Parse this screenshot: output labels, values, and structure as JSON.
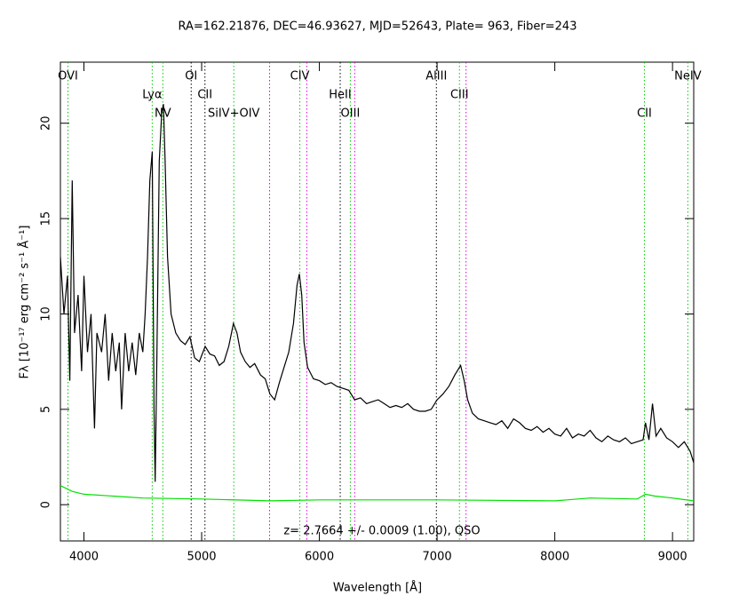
{
  "chart_data": {
    "type": "line",
    "title": "RA=162.21876, DEC=46.93627, MJD=52643, Plate= 963, Fiber=243",
    "annotation": "z= 2.7664 +/- 0.0009 (1.00), QSO",
    "x_label": "Wavelength [Å]",
    "y_label": "Fλ [10⁻¹⁷ erg cm⁻² s⁻¹ Å⁻¹]",
    "xlim": [
      3800,
      9180
    ],
    "ylim": [
      -1.9,
      23.2
    ],
    "xticks": [
      4000,
      5000,
      6000,
      7000,
      8000,
      9000
    ],
    "yticks": [
      0,
      5,
      10,
      15,
      20
    ],
    "series": [
      {
        "color": "#000000",
        "x": [
          3800,
          3830,
          3860,
          3880,
          3900,
          3920,
          3950,
          3980,
          4000,
          4030,
          4060,
          4090,
          4110,
          4150,
          4180,
          4210,
          4240,
          4270,
          4300,
          4320,
          4350,
          4380,
          4410,
          4440,
          4470,
          4500,
          4520,
          4540,
          4560,
          4580,
          4595,
          4605,
          4620,
          4640,
          4660,
          4675,
          4690,
          4710,
          4740,
          4780,
          4820,
          4860,
          4900,
          4940,
          4980,
          5030,
          5070,
          5110,
          5150,
          5190,
          5230,
          5270,
          5300,
          5330,
          5370,
          5410,
          5450,
          5500,
          5540,
          5580,
          5620,
          5660,
          5700,
          5740,
          5780,
          5810,
          5830,
          5850,
          5870,
          5900,
          5950,
          6000,
          6050,
          6100,
          6150,
          6200,
          6250,
          6300,
          6350,
          6400,
          6450,
          6500,
          6550,
          6600,
          6650,
          6700,
          6750,
          6800,
          6850,
          6900,
          6950,
          7000,
          7050,
          7100,
          7150,
          7200,
          7230,
          7260,
          7300,
          7350,
          7400,
          7450,
          7500,
          7550,
          7600,
          7650,
          7700,
          7750,
          7800,
          7850,
          7900,
          7950,
          8000,
          8050,
          8100,
          8150,
          8200,
          8250,
          8300,
          8350,
          8400,
          8450,
          8500,
          8550,
          8600,
          8650,
          8700,
          8750,
          8770,
          8800,
          8830,
          8860,
          8900,
          8950,
          9000,
          9050,
          9100,
          9150,
          9180
        ],
        "values": [
          13,
          10,
          12,
          6.5,
          17,
          9,
          11,
          7,
          12,
          8,
          10,
          4,
          9,
          8,
          10,
          6.5,
          9,
          7,
          8.5,
          5,
          9,
          7,
          8.5,
          6.8,
          9,
          8,
          10,
          13,
          17,
          18.5,
          5,
          1.2,
          8,
          18,
          20.5,
          21,
          18,
          13,
          10,
          9,
          8.6,
          8.4,
          8.8,
          7.7,
          7.5,
          8.3,
          7.9,
          7.8,
          7.3,
          7.5,
          8.3,
          9.5,
          9,
          8,
          7.5,
          7.2,
          7.4,
          6.8,
          6.6,
          5.8,
          5.5,
          6.4,
          7.2,
          8,
          9.5,
          11.5,
          12.1,
          11,
          8.5,
          7.2,
          6.6,
          6.5,
          6.3,
          6.4,
          6.2,
          6.1,
          6.0,
          5.5,
          5.6,
          5.3,
          5.4,
          5.5,
          5.3,
          5.1,
          5.2,
          5.1,
          5.3,
          5.0,
          4.9,
          4.9,
          5.0,
          5.5,
          5.8,
          6.2,
          6.8,
          7.3,
          6.5,
          5.5,
          4.8,
          4.5,
          4.4,
          4.3,
          4.2,
          4.4,
          4.0,
          4.5,
          4.3,
          4.0,
          3.9,
          4.1,
          3.8,
          4.0,
          3.7,
          3.6,
          4.0,
          3.5,
          3.7,
          3.6,
          3.9,
          3.5,
          3.3,
          3.6,
          3.4,
          3.3,
          3.5,
          3.2,
          3.3,
          3.4,
          4.3,
          3.4,
          5.3,
          3.6,
          4.0,
          3.5,
          3.3,
          3.0,
          3.3,
          2.8,
          2.2
        ]
      },
      {
        "color": "#00e000",
        "x": [
          3800,
          3900,
          4000,
          4500,
          5000,
          5580,
          6000,
          7000,
          8000,
          8300,
          8700,
          8770,
          8850,
          9000,
          9180
        ],
        "values": [
          1.0,
          0.7,
          0.55,
          0.35,
          0.3,
          0.2,
          0.25,
          0.25,
          0.2,
          0.35,
          0.3,
          0.55,
          0.45,
          0.35,
          0.2
        ]
      }
    ],
    "lines": [
      {
        "label": "OVI",
        "wavelength": 3864,
        "color": "#00cc00"
      },
      {
        "label": "Lyα",
        "wavelength": 4580,
        "color": "#00cc00"
      },
      {
        "label": "NV",
        "wavelength": 4670,
        "color": "#00cc00"
      },
      {
        "label": "OI",
        "wavelength": 4911,
        "color": "#000000"
      },
      {
        "label": "CII",
        "wavelength": 5028,
        "color": "#000000"
      },
      {
        "label": "SiIV+OIV",
        "wavelength": 5273,
        "color": "#00cc00"
      },
      {
        "label": "CIV",
        "wavelength": 5834,
        "color": "#00cc00"
      },
      {
        "label": "HeII",
        "wavelength": 6177,
        "color": "#000000"
      },
      {
        "label": "OIII",
        "wavelength": 6263,
        "color": "#00cc00"
      },
      {
        "label": "AlIII",
        "wavelength": 6994,
        "color": "#000000"
      },
      {
        "label": "CIII",
        "wavelength": 7190,
        "color": "#00cc00"
      },
      {
        "label": "CII",
        "wavelength": 8761,
        "color": "#00cc00"
      },
      {
        "label": "NeIV",
        "wavelength": 9130,
        "color": "#00cc00"
      }
    ],
    "sky_lines": {
      "color": "#dd00dd",
      "wavelengths": [
        5577,
        5893,
        6300,
        7246
      ]
    }
  }
}
